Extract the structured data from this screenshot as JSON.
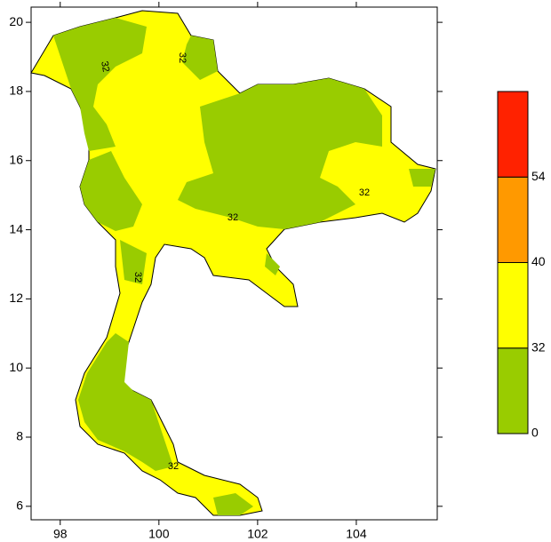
{
  "chart_data": {
    "type": "map",
    "xlim": [
      97.41,
      105.64
    ],
    "ylim": [
      5.61,
      20.44
    ],
    "xticks": [
      98,
      100,
      102,
      104
    ],
    "yticks": [
      6,
      8,
      10,
      12,
      14,
      16,
      18,
      20
    ],
    "contour_labels": [
      "32",
      "32",
      "32",
      "32",
      "32",
      "32"
    ],
    "colorbar": {
      "levels": [
        0,
        32,
        40,
        54
      ],
      "colors": [
        "#99cc00",
        "#ffff00",
        "#ff9900",
        "#ff2200"
      ]
    }
  }
}
